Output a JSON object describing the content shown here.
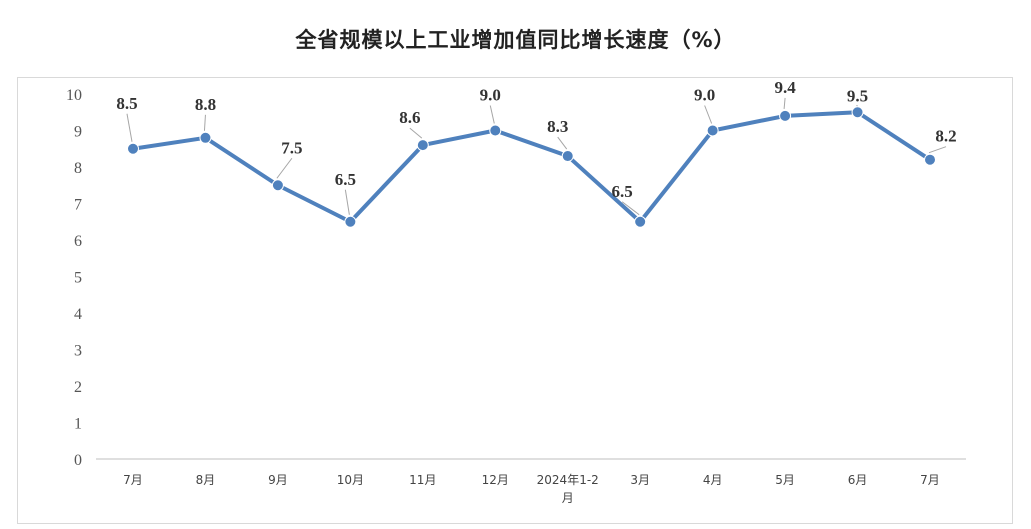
{
  "title": "全省规模以上工业增加值同比增长速度（%）",
  "colors": {
    "line": "#4f81bd",
    "leader": "#a6a6a6",
    "axis": "#bfbfbf"
  },
  "chart_data": {
    "type": "line",
    "title": "全省规模以上工业增加值同比增长速度（%）",
    "xlabel": "",
    "ylabel": "",
    "ylim": [
      0,
      10
    ],
    "yticks": [
      "0",
      "1",
      "2",
      "3",
      "4",
      "5",
      "6",
      "7",
      "8",
      "9",
      "10"
    ],
    "grid": false,
    "legend": "none",
    "categories": [
      "7月",
      "8月",
      "9月",
      "10月",
      "11月",
      "12月",
      "2024年1-2月",
      "3月",
      "4月",
      "5月",
      "6月",
      "7月"
    ],
    "category_lines": [
      [
        "7月"
      ],
      [
        "8月"
      ],
      [
        "9月"
      ],
      [
        "10月"
      ],
      [
        "11月"
      ],
      [
        "12月"
      ],
      [
        "2024年1-2",
        "月"
      ],
      [
        "3月"
      ],
      [
        "4月"
      ],
      [
        "5月"
      ],
      [
        "6月"
      ],
      [
        "7月"
      ]
    ],
    "series": [
      {
        "values": [
          8.5,
          8.8,
          7.5,
          6.5,
          8.6,
          9.0,
          8.3,
          6.5,
          9.0,
          9.4,
          9.5,
          8.2
        ]
      }
    ],
    "data_labels": [
      "8.5",
      "8.8",
      "7.5",
      "6.5",
      "8.6",
      "9.0",
      "8.3",
      "6.5",
      "9.0",
      "9.4",
      "9.5",
      "8.2"
    ]
  }
}
